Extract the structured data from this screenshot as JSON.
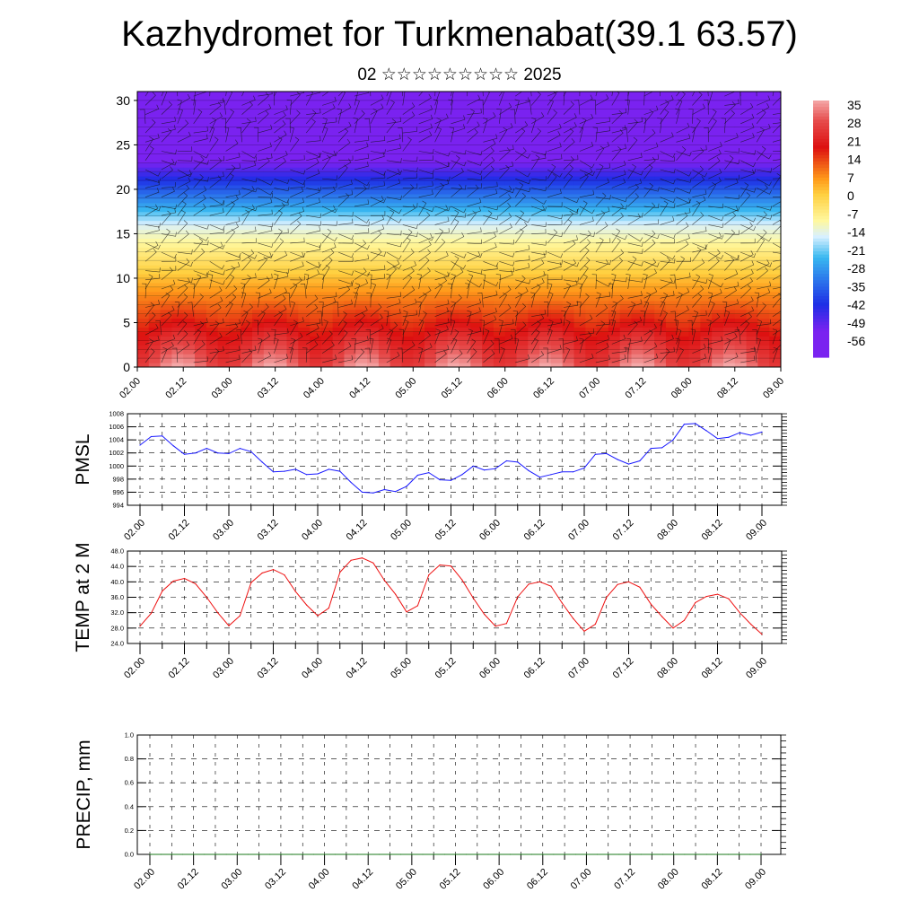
{
  "page": {
    "title": "Kazhydromet for Turkmenabat(39.1 63.57)",
    "subtitle": "02 ☆☆☆☆☆☆☆☆☆ 2025"
  },
  "chart_data": [
    {
      "type": "heatmap",
      "title": "",
      "xlabel": "",
      "ylabel": "",
      "x_tick_labels": [
        "02.00",
        "02.12",
        "03.00",
        "03.12",
        "04.00",
        "04.12",
        "05.00",
        "05.12",
        "06.00",
        "06.12",
        "07.00",
        "07.12",
        "08.00",
        "08.12",
        "09.00"
      ],
      "y_ticks": [
        0,
        5,
        10,
        15,
        20,
        25,
        30
      ],
      "ylim": [
        0,
        31
      ],
      "colorbar_labels": [
        "35",
        "28",
        "21",
        "14",
        "7",
        "0",
        "-7",
        "-14",
        "-21",
        "-28",
        "-35",
        "-42",
        "-49",
        "-56"
      ],
      "colorbar_values": [
        35,
        28,
        21,
        14,
        7,
        0,
        -7,
        -14,
        -21,
        -28,
        -35,
        -42,
        -49,
        -56
      ],
      "overlay": "wind barbs",
      "colors": {
        "warmest": "#f4a8a8",
        "warm": "#dd1010",
        "mid": "#ff9a1a",
        "neutral": "#fff8a0",
        "cool": "#38b8f0",
        "cold": "#1e2ee6",
        "coldest": "#7a22f0"
      }
    },
    {
      "type": "line",
      "ylabel": "PMSL",
      "ylim": [
        994,
        1008
      ],
      "y_ticks": [
        "994",
        "996",
        "998",
        "1000",
        "1002",
        "1004",
        "1006",
        "1008"
      ],
      "x_tick_labels": [
        "02.00",
        "02.12",
        "03.00",
        "03.12",
        "04.00",
        "04.12",
        "05.00",
        "05.12",
        "06.00",
        "06.12",
        "07.00",
        "07.12",
        "08.00",
        "08.12",
        "09.00"
      ],
      "color": "#1a1aff",
      "values": [
        1003.2,
        1004.5,
        1004.6,
        1003.1,
        1001.8,
        1002.0,
        1002.7,
        1002.0,
        1001.9,
        1002.7,
        1002.2,
        1000.6,
        999.1,
        999.2,
        999.5,
        998.7,
        998.8,
        999.5,
        999.2,
        997.5,
        996.0,
        995.9,
        996.4,
        996.1,
        996.9,
        998.6,
        999.0,
        997.9,
        997.8,
        998.7,
        1000.0,
        999.4,
        999.6,
        1000.8,
        1000.6,
        999.3,
        998.3,
        998.7,
        999.1,
        999.1,
        999.7,
        1001.8,
        1001.9,
        1001.0,
        1000.3,
        1000.8,
        1002.7,
        1002.8,
        1004.0,
        1006.4,
        1006.5,
        1005.4,
        1004.2,
        1004.4,
        1005.1,
        1004.7,
        1005.2
      ]
    },
    {
      "type": "line",
      "ylabel": "TEMP at 2 M",
      "ylim": [
        24,
        48
      ],
      "y_ticks": [
        "24.0",
        "28.0",
        "32.0",
        "36.0",
        "40.0",
        "44.0",
        "48.0"
      ],
      "x_tick_labels": [
        "02.00",
        "02.12",
        "03.00",
        "03.12",
        "04.00",
        "04.12",
        "05.00",
        "05.12",
        "06.00",
        "06.12",
        "07.00",
        "07.12",
        "08.00",
        "08.12",
        "09.00"
      ],
      "color": "#ee1111",
      "values": [
        28.5,
        31.8,
        37.6,
        40.2,
        40.9,
        39.5,
        36.0,
        32.0,
        28.6,
        31.2,
        39.8,
        42.3,
        43.2,
        41.8,
        37.5,
        34.0,
        31.2,
        33.2,
        42.5,
        45.6,
        46.2,
        44.9,
        40.4,
        36.8,
        32.2,
        33.8,
        41.8,
        44.4,
        44.1,
        40.5,
        35.8,
        31.6,
        28.5,
        29.2,
        36.1,
        39.4,
        40.0,
        38.9,
        34.5,
        30.5,
        27.2,
        29.0,
        36.0,
        39.3,
        40.0,
        38.6,
        34.2,
        31.0,
        28.0,
        30.0,
        34.6,
        36.2,
        36.8,
        35.6,
        32.0,
        29.0,
        26.4
      ]
    },
    {
      "type": "line",
      "ylabel": "PRECIP, mm",
      "ylim": [
        0,
        1
      ],
      "y_ticks": [
        "0.0",
        "0.2",
        "0.4",
        "0.6",
        "0.8",
        "1.0"
      ],
      "x_tick_labels": [
        "02.00",
        "02.12",
        "03.00",
        "03.12",
        "04.00",
        "04.12",
        "05.00",
        "05.12",
        "06.00",
        "06.12",
        "07.00",
        "07.12",
        "08.00",
        "08.12",
        "09.00"
      ],
      "color": "#1a7a1a",
      "values": [
        0,
        0,
        0,
        0,
        0,
        0,
        0,
        0,
        0,
        0,
        0,
        0,
        0,
        0,
        0,
        0,
        0,
        0,
        0,
        0,
        0,
        0,
        0,
        0,
        0,
        0,
        0,
        0,
        0,
        0,
        0,
        0,
        0,
        0,
        0,
        0,
        0,
        0,
        0,
        0,
        0,
        0,
        0,
        0,
        0,
        0,
        0,
        0,
        0,
        0,
        0,
        0,
        0,
        0,
        0,
        0,
        0
      ]
    }
  ]
}
